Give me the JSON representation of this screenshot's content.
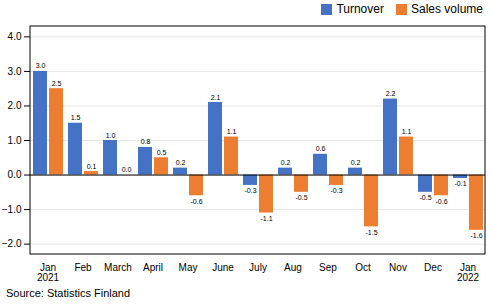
{
  "chart_data": {
    "type": "bar",
    "categories": [
      "Jan\n2021",
      "Feb",
      "March",
      "April",
      "May",
      "June",
      "July",
      "Aug",
      "Sep",
      "Oct",
      "Nov",
      "Dec",
      "Jan\n2022"
    ],
    "series": [
      {
        "name": "Turnover",
        "color": "#4472C4",
        "values": [
          3.0,
          1.5,
          1.0,
          0.8,
          0.2,
          2.1,
          -0.3,
          0.2,
          0.6,
          0.2,
          2.2,
          -0.5,
          -0.1
        ],
        "value_labels": [
          "3.0",
          "1.5",
          "1.0",
          "0.8",
          "0.2",
          "2.1",
          "-0.3",
          "0.2",
          "0.6",
          "0.2",
          "2.2",
          "-0.5",
          "-0.1"
        ]
      },
      {
        "name": "Sales volume",
        "color": "#ED7D31",
        "values": [
          2.5,
          0.1,
          0.0,
          0.5,
          -0.6,
          1.1,
          -1.1,
          -0.5,
          -0.3,
          -1.5,
          1.1,
          -0.6,
          -1.6
        ],
        "value_labels": [
          "2.5",
          "0.1",
          "0.0",
          "0.5",
          "-0.6",
          "1.1",
          "-1.1",
          "-0.5",
          "-0.3",
          "-1.5",
          "1.1",
          "-0.6",
          "-1.6"
        ]
      }
    ],
    "ylim": [
      -2.3,
      4.3
    ],
    "yticks": [
      -2,
      -1,
      0,
      1,
      2,
      3,
      4
    ],
    "grid": true,
    "data_labels": true,
    "legend": "upper right",
    "caption": "Source: Statistics Finland"
  }
}
